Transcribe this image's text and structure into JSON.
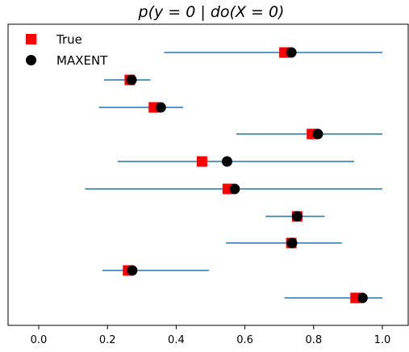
{
  "chart_data": {
    "type": "scatter",
    "title": "p(y = 0 | do(X = 0)",
    "xlabel": "",
    "ylabel": "",
    "xlim": [
      -0.08,
      1.08
    ],
    "xticks": [
      0.0,
      0.2,
      0.4,
      0.6,
      0.8,
      1.0
    ],
    "xtick_labels": [
      "0.0",
      "0.2",
      "0.4",
      "0.6",
      "0.8",
      "1.0"
    ],
    "grid": false,
    "legend_position": "top-left",
    "series": [
      {
        "name": "True",
        "marker": "square",
        "color": "#ff0000",
        "values": [
          0.715,
          0.265,
          0.335,
          0.795,
          0.475,
          0.55,
          0.752,
          0.735,
          0.26,
          0.922
        ]
      },
      {
        "name": "MAXENT",
        "marker": "circle",
        "color": "#000000",
        "values": [
          0.735,
          0.27,
          0.355,
          0.812,
          0.548,
          0.57,
          0.752,
          0.737,
          0.272,
          0.942
        ]
      }
    ],
    "intervals": {
      "color": "#1f77b4",
      "lower": [
        0.365,
        0.19,
        0.175,
        0.575,
        0.23,
        0.135,
        0.66,
        0.545,
        0.185,
        0.715
      ],
      "upper": [
        1.0,
        0.325,
        0.42,
        1.0,
        0.918,
        1.0,
        0.832,
        0.882,
        0.495,
        1.0
      ]
    }
  }
}
